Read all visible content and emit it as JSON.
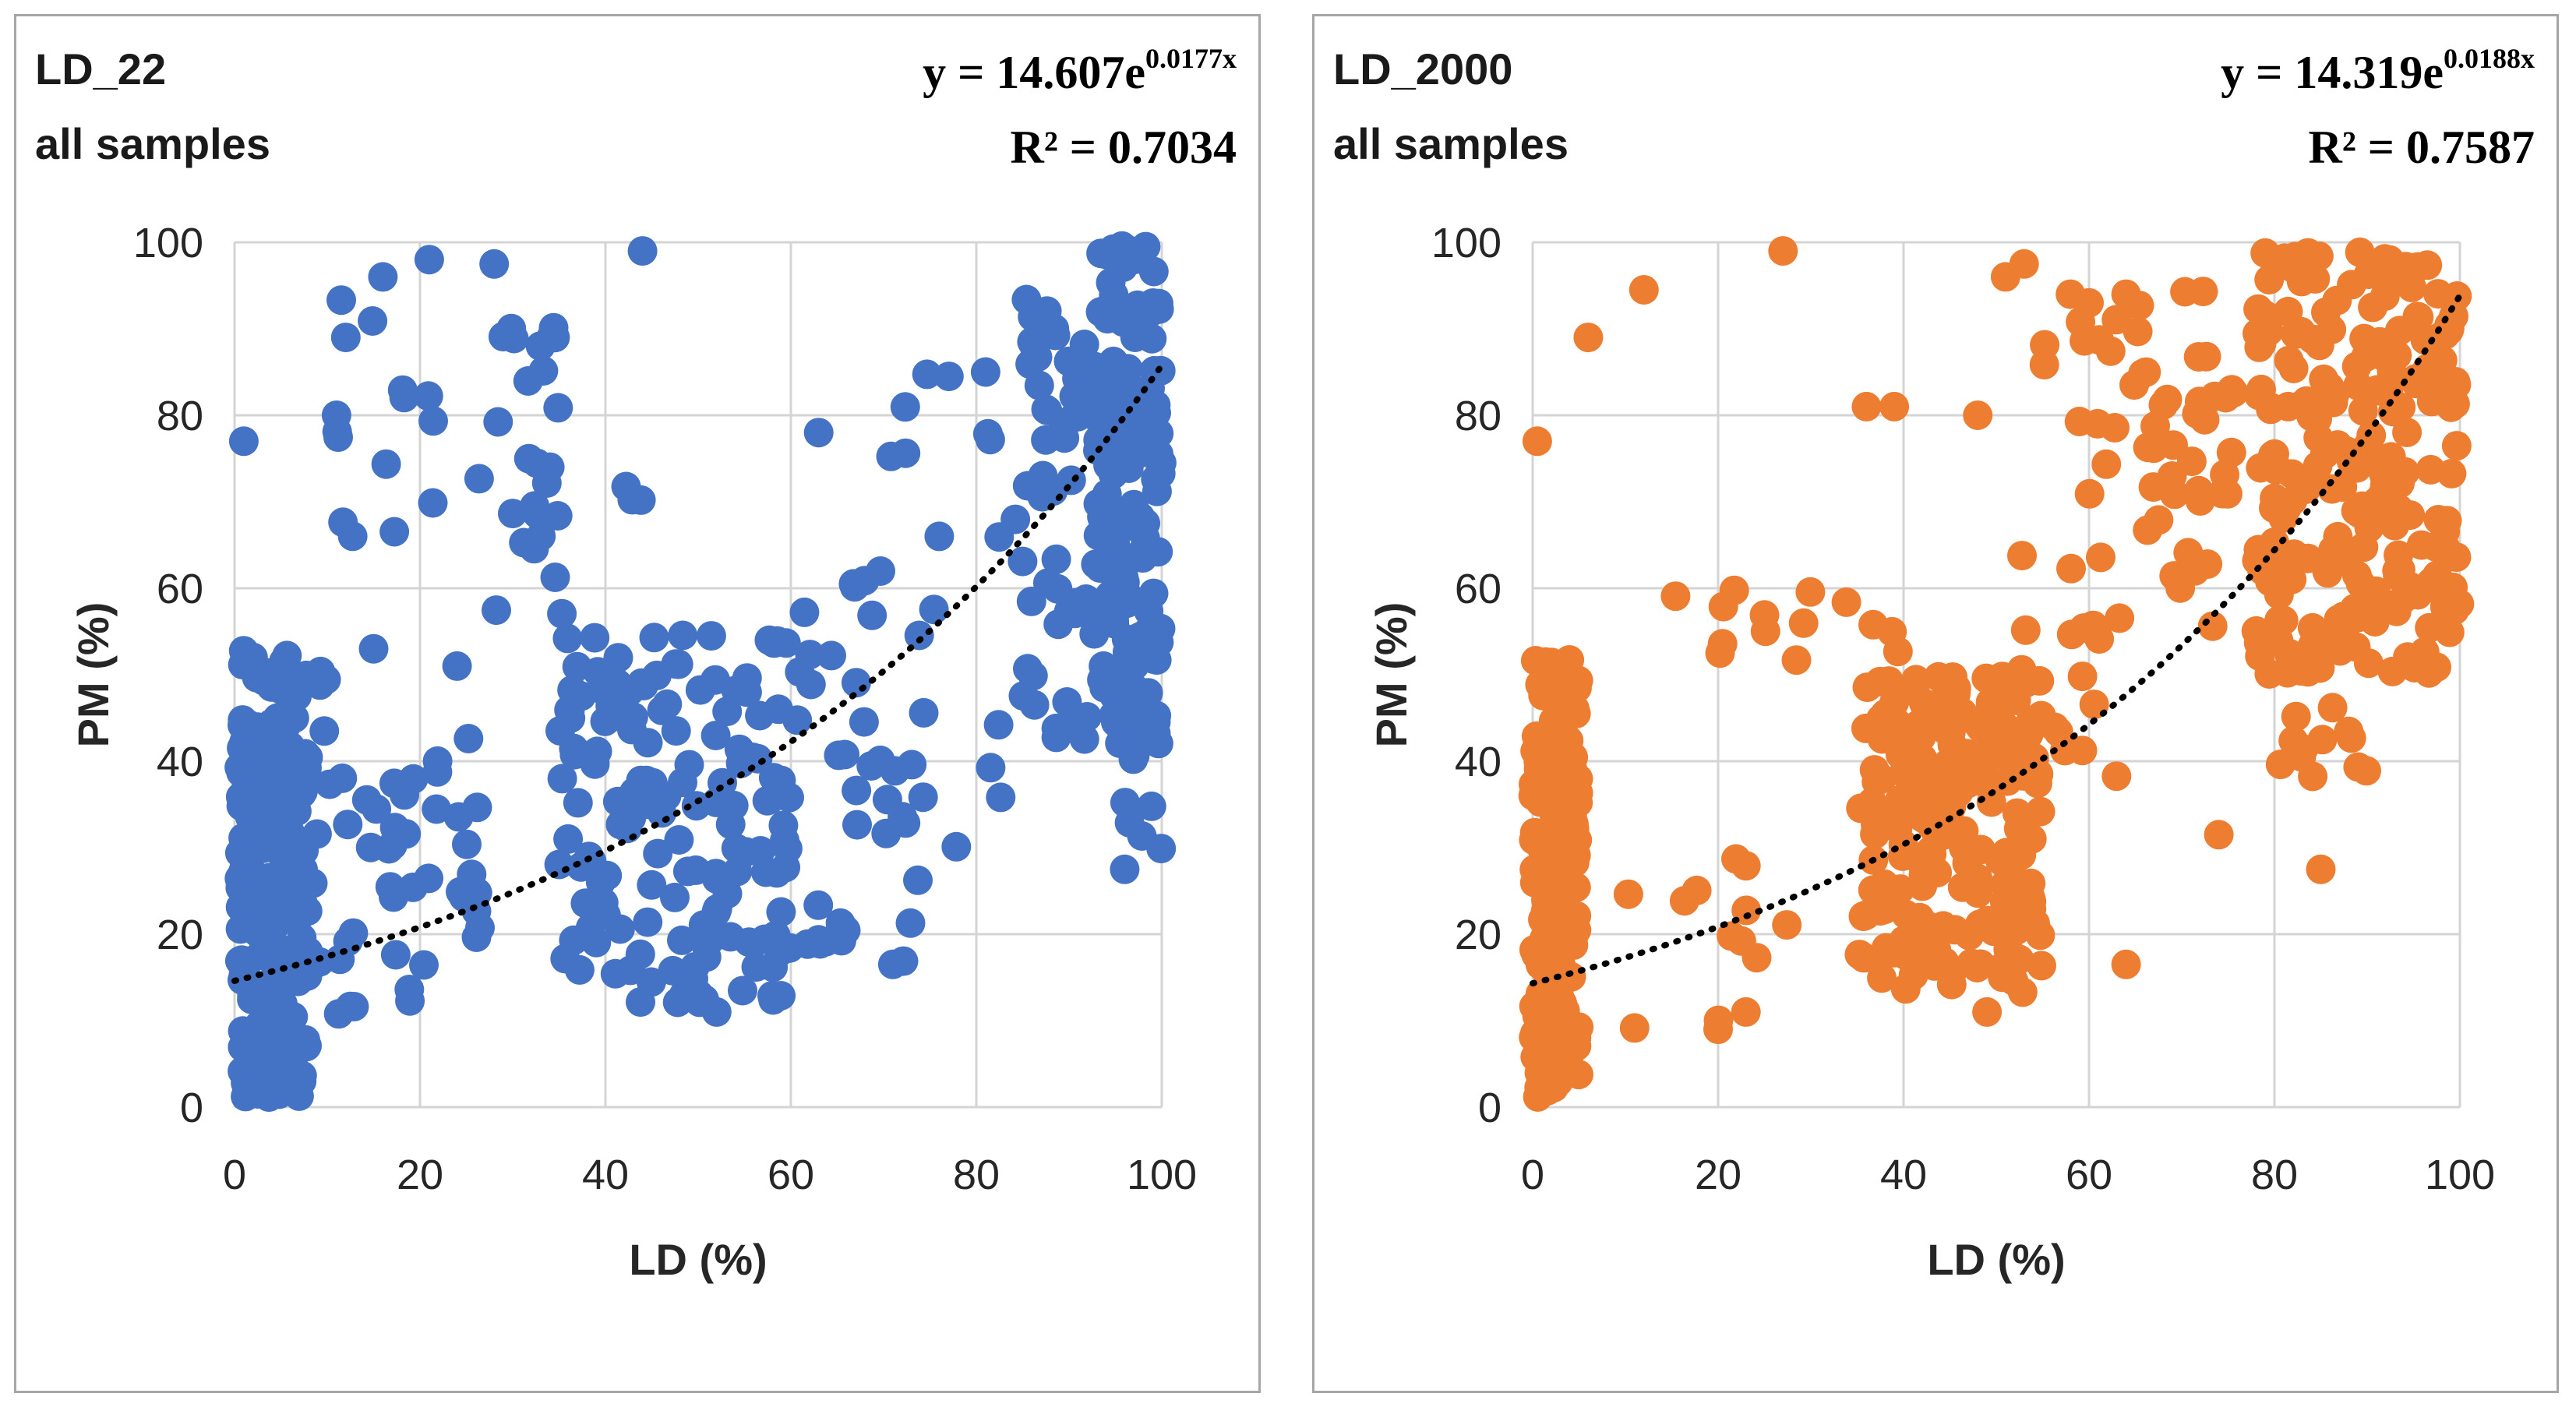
{
  "chart_data": [
    {
      "type": "scatter",
      "title": "LD_22",
      "subtitle": "all samples",
      "xlabel": "LD (%)",
      "ylabel": "PM (%)",
      "xlim": [
        0,
        100
      ],
      "ylim": [
        0,
        100
      ],
      "xticks": [
        "0",
        "20",
        "40",
        "60",
        "80",
        "100"
      ],
      "yticks": [
        "0",
        "20",
        "40",
        "60",
        "80",
        "100"
      ],
      "grid": true,
      "color": "#4472c4",
      "trendline": {
        "type": "exponential",
        "a": 14.607,
        "b": 0.0177,
        "equation_prefix": "y = 14.607e",
        "equation_exponent": "0.0177x",
        "r_squared_text": "R² = 0.7034",
        "style": "dotted",
        "color": "#000000"
      },
      "seed": 22,
      "clusters": [
        {
          "n": 200,
          "x": [
            0.5,
            8
          ],
          "y": [
            1,
            45
          ]
        },
        {
          "n": 18,
          "x": [
            0.5,
            10
          ],
          "y": [
            45,
            53
          ]
        },
        {
          "n": 45,
          "x": [
            8,
            28
          ],
          "y": [
            8,
            45
          ]
        },
        {
          "n": 30,
          "x": [
            11,
            35
          ],
          "y": [
            65,
            99
          ]
        },
        {
          "n": 10,
          "x": [
            28,
            45
          ],
          "y": [
            52,
            75
          ]
        },
        {
          "n": 150,
          "x": [
            35,
            60
          ],
          "y": [
            12,
            55
          ]
        },
        {
          "n": 35,
          "x": [
            55,
            75
          ],
          "y": [
            15,
            62
          ]
        },
        {
          "n": 25,
          "x": [
            68,
            90
          ],
          "y": [
            30,
            85
          ]
        },
        {
          "n": 50,
          "x": [
            85,
            93
          ],
          "y": [
            42,
            99
          ]
        },
        {
          "n": 140,
          "x": [
            93,
            100
          ],
          "y": [
            42,
            100
          ]
        },
        {
          "n": 12,
          "x": [
            96,
            100
          ],
          "y": [
            28,
            46
          ]
        }
      ],
      "points": [
        [
          1,
          77
        ],
        [
          44,
          99
        ],
        [
          28,
          97.5
        ],
        [
          21,
          98
        ],
        [
          16,
          96
        ],
        [
          12,
          89
        ],
        [
          11,
          80
        ],
        [
          33,
          88
        ],
        [
          34,
          74
        ],
        [
          71,
          16.5
        ],
        [
          52,
          11
        ],
        [
          2,
          52
        ],
        [
          15,
          53
        ],
        [
          24,
          51
        ],
        [
          63,
          78
        ],
        [
          76,
          66
        ],
        [
          81,
          85
        ],
        [
          96,
          27.5
        ]
      ]
    },
    {
      "type": "scatter",
      "title": "LD_2000",
      "subtitle": "all samples",
      "xlabel": "LD (%)",
      "ylabel": "PM (%)",
      "xlim": [
        0,
        100
      ],
      "ylim": [
        0,
        100
      ],
      "xticks": [
        "0",
        "20",
        "40",
        "60",
        "80",
        "100"
      ],
      "yticks": [
        "0",
        "20",
        "40",
        "60",
        "80",
        "100"
      ],
      "grid": true,
      "color": "#ed7d31",
      "trendline": {
        "type": "exponential",
        "a": 14.319,
        "b": 0.0188,
        "equation_prefix": "y = 14.319e",
        "equation_exponent": "0.0188x",
        "r_squared_text": "R² = 0.7587",
        "style": "dotted",
        "color": "#000000"
      },
      "seed": 2000,
      "clusters": [
        {
          "n": 190,
          "x": [
            0,
            5
          ],
          "y": [
            1,
            52
          ]
        },
        {
          "n": 12,
          "x": [
            8,
            28
          ],
          "y": [
            9,
            30
          ]
        },
        {
          "n": 14,
          "x": [
            15,
            40
          ],
          "y": [
            50,
            61
          ]
        },
        {
          "n": 210,
          "x": [
            35,
            55
          ],
          "y": [
            13,
            50
          ]
        },
        {
          "n": 20,
          "x": [
            50,
            63
          ],
          "y": [
            38,
            64
          ]
        },
        {
          "n": 30,
          "x": [
            55,
            75
          ],
          "y": [
            70,
            97
          ]
        },
        {
          "n": 25,
          "x": [
            62,
            80
          ],
          "y": [
            55,
            85
          ]
        },
        {
          "n": 230,
          "x": [
            78,
            100
          ],
          "y": [
            50,
            99
          ]
        },
        {
          "n": 12,
          "x": [
            80,
            90
          ],
          "y": [
            38,
            50
          ]
        }
      ],
      "points": [
        [
          0.5,
          77
        ],
        [
          6,
          89
        ],
        [
          12,
          94.5
        ],
        [
          27,
          99
        ],
        [
          36,
          81
        ],
        [
          39,
          81
        ],
        [
          48,
          80
        ],
        [
          51,
          96
        ],
        [
          53,
          97.5
        ],
        [
          58,
          94
        ],
        [
          60,
          93
        ],
        [
          64,
          94
        ],
        [
          74,
          31.5
        ],
        [
          85,
          27.5
        ],
        [
          64,
          16.5
        ],
        [
          49,
          11
        ],
        [
          20,
          9
        ],
        [
          23,
          11
        ]
      ]
    }
  ]
}
